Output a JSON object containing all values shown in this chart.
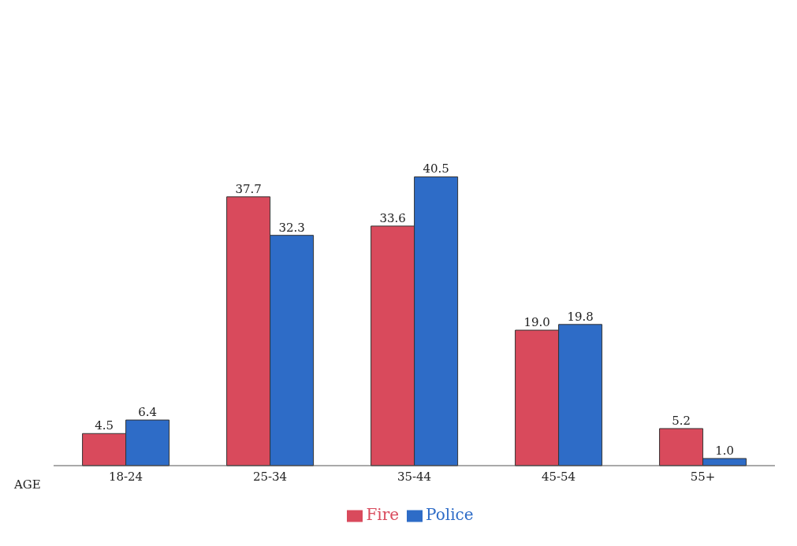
{
  "chart_data": {
    "type": "bar",
    "xlabel": "AGE",
    "categories": [
      "18-24",
      "25-34",
      "35-44",
      "45-54",
      "55+"
    ],
    "series": [
      {
        "name": "Fire",
        "color": "#d94a5c",
        "values": [
          4.5,
          37.7,
          33.6,
          19,
          5.2
        ],
        "value_labels": [
          "4.5",
          "37.7",
          "33.6",
          "19.0",
          "5.2"
        ]
      },
      {
        "name": "Police",
        "color": "#2e6cc7",
        "values": [
          6.4,
          32.3,
          40.5,
          19.8,
          1
        ],
        "value_labels": [
          "6.4",
          "32.3",
          "40.5",
          "19.8",
          "1.0"
        ]
      }
    ],
    "legend": "bottom",
    "grid": false
  }
}
